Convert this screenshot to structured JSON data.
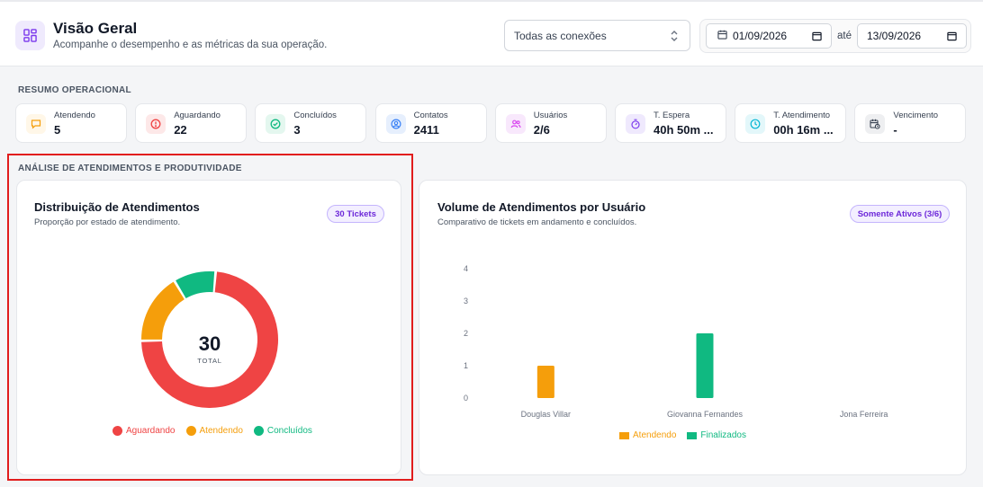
{
  "header": {
    "title": "Visão Geral",
    "subtitle": "Acompanhe o desempenho e as métricas da sua operação."
  },
  "filters": {
    "connection": "Todas as conexões",
    "date_from": "01/09/2026",
    "date_separator": "até",
    "date_to": "13/09/2026"
  },
  "summary": {
    "section_label": "RESUMO OPERACIONAL",
    "cards": [
      {
        "label": "Atendendo",
        "value": "5",
        "icon": "chat-icon",
        "color": "#f59e0b",
        "bg": "#fff7e8"
      },
      {
        "label": "Aguardando",
        "value": "22",
        "icon": "alert-circle-icon",
        "color": "#ef4444",
        "bg": "#fde8e8"
      },
      {
        "label": "Concluídos",
        "value": "3",
        "icon": "check-circle-icon",
        "color": "#10b981",
        "bg": "#e4f7ef"
      },
      {
        "label": "Contatos",
        "value": "2411",
        "icon": "user-circle-icon",
        "color": "#3b82f6",
        "bg": "#e6effd"
      },
      {
        "label": "Usuários",
        "value": "2/6",
        "icon": "users-icon",
        "color": "#d946ef",
        "bg": "#f8e8fc"
      },
      {
        "label": "T. Espera",
        "value": "40h 50m ...",
        "icon": "stopwatch-icon",
        "color": "#7c3aed",
        "bg": "#efe9fd"
      },
      {
        "label": "T. Atendimento",
        "value": "00h 16m ...",
        "icon": "clock-icon",
        "color": "#06b6d4",
        "bg": "#e3f7fa"
      },
      {
        "label": "Vencimento",
        "value": "-",
        "icon": "calendar-clock-icon",
        "color": "#374151",
        "bg": "#eeeff1"
      }
    ]
  },
  "analysis": {
    "section_label": "ANÁLISE DE ATENDIMENTOS E PRODUTIVIDADE",
    "distribution": {
      "title": "Distribuição de Atendimentos",
      "subtitle": "Proporção por estado de atendimento.",
      "badge": "30 Tickets",
      "total_value": "30",
      "total_label": "TOTAL",
      "legend": [
        {
          "label": "Aguardando",
          "color": "#ef4444"
        },
        {
          "label": "Atendendo",
          "color": "#f59e0b"
        },
        {
          "label": "Concluídos",
          "color": "#10b981"
        }
      ]
    },
    "volume": {
      "title": "Volume de Atendimentos por Usuário",
      "subtitle": "Comparativo de tickets em andamento e concluídos.",
      "badge": "Somente Ativos (3/6)",
      "legend": [
        {
          "label": "Atendendo",
          "color": "#f59e0b"
        },
        {
          "label": "Finalizados",
          "color": "#10b981"
        }
      ]
    }
  },
  "chart_data": [
    {
      "type": "pie",
      "title": "Distribuição de Atendimentos",
      "categories": [
        "Aguardando",
        "Atendendo",
        "Concluídos"
      ],
      "values": [
        22,
        5,
        3
      ],
      "colors": [
        "#ef4444",
        "#f59e0b",
        "#10b981"
      ],
      "legend": "bottom"
    },
    {
      "type": "bar",
      "title": "Volume de Atendimentos por Usuário",
      "categories": [
        "Douglas Villar",
        "Giovanna Fernandes",
        "Jona Ferreira"
      ],
      "series": [
        {
          "name": "Atendendo",
          "color": "#f59e0b",
          "values": [
            1,
            0,
            0
          ]
        },
        {
          "name": "Finalizados",
          "color": "#10b981",
          "values": [
            0,
            2,
            0
          ]
        }
      ],
      "ylim": [
        0,
        4
      ],
      "yticks": [
        "0",
        "1",
        "2",
        "3",
        "4"
      ],
      "grid": false,
      "legend": "bottom"
    }
  ]
}
